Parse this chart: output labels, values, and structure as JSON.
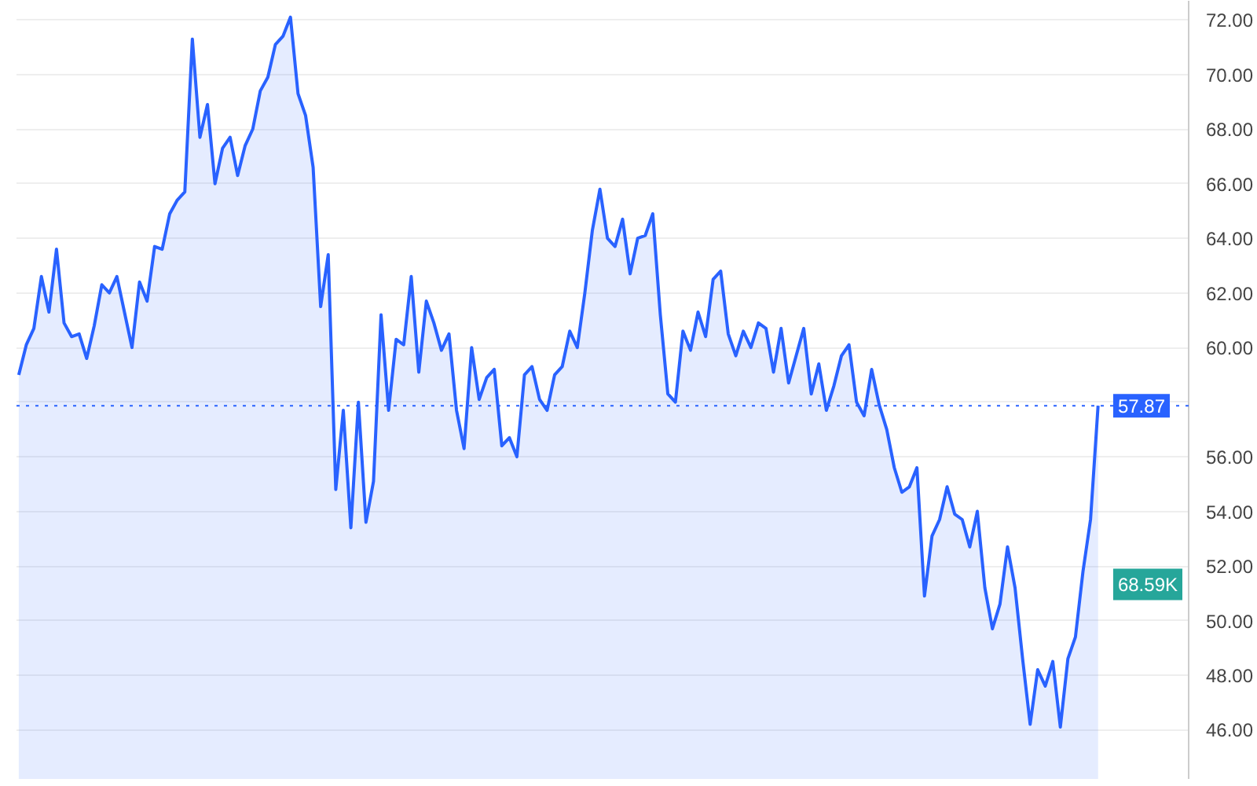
{
  "chart_data": {
    "type": "area",
    "categories": [
      null,
      null,
      null,
      null,
      null,
      null,
      null,
      null,
      null,
      null,
      null,
      null,
      null,
      null,
      null,
      null,
      null,
      null,
      null,
      null,
      null,
      null,
      null,
      null,
      null,
      null,
      null,
      null,
      null,
      null,
      null,
      null,
      null,
      null,
      null,
      null,
      null,
      null,
      null,
      null,
      null,
      null,
      null,
      null,
      null,
      null,
      null,
      null,
      null,
      null,
      null,
      null,
      null,
      null,
      null,
      null,
      null,
      null,
      null,
      null,
      null,
      null,
      null,
      null,
      null,
      null,
      null,
      null,
      null,
      null,
      null,
      null,
      null,
      null,
      null,
      null,
      null,
      null,
      null,
      null,
      null,
      null,
      null,
      null,
      null,
      null,
      null,
      null,
      null,
      null,
      null,
      null,
      null,
      null,
      null,
      null,
      null,
      null,
      null,
      null,
      null,
      null,
      null,
      null,
      null,
      null,
      null,
      null,
      null,
      null,
      null,
      null,
      null,
      null,
      null,
      null,
      null,
      null,
      null,
      null,
      null,
      null,
      null,
      null,
      null,
      null,
      null,
      null,
      null,
      null,
      null,
      null,
      null,
      null,
      null,
      null,
      null,
      null,
      null,
      null,
      null,
      null,
      null,
      null
    ],
    "series": [
      {
        "color": "#2962ff",
        "values": [
          59.0,
          60.1,
          60.7,
          62.6,
          61.3,
          63.6,
          60.9,
          60.4,
          60.5,
          59.6,
          60.8,
          62.3,
          62.0,
          62.6,
          61.3,
          60.0,
          62.4,
          61.7,
          63.7,
          63.6,
          64.9,
          65.4,
          65.7,
          71.3,
          67.7,
          68.9,
          66.0,
          67.3,
          67.7,
          66.3,
          67.4,
          68.0,
          69.4,
          69.9,
          71.1,
          71.4,
          72.1,
          69.3,
          68.5,
          66.6,
          61.5,
          63.4,
          54.8,
          57.7,
          53.4,
          58.0,
          53.6,
          55.1,
          61.2,
          57.7,
          60.3,
          60.1,
          62.6,
          59.1,
          61.7,
          60.9,
          59.9,
          60.5,
          57.7,
          56.3,
          60.0,
          58.1,
          58.9,
          59.2,
          56.4,
          56.7,
          56.0,
          59.0,
          59.3,
          58.1,
          57.7,
          59.0,
          59.3,
          60.6,
          60.0,
          62.0,
          64.3,
          65.8,
          64.0,
          63.7,
          64.7,
          62.7,
          64.0,
          64.1,
          64.9,
          61.2,
          58.3,
          58.0,
          60.6,
          59.9,
          61.3,
          60.4,
          62.5,
          62.8,
          60.5,
          59.7,
          60.6,
          60.0,
          60.9,
          60.7,
          59.1,
          60.7,
          58.7,
          59.7,
          60.7,
          58.3,
          59.4,
          57.7,
          58.6,
          59.7,
          60.1,
          58.0,
          57.5,
          59.2,
          57.9,
          57.0,
          55.6,
          54.7,
          54.9,
          55.6,
          50.9,
          53.1,
          53.7,
          54.9,
          53.9,
          53.7,
          52.7,
          54.0,
          51.2,
          49.7,
          50.6,
          52.7,
          51.2,
          48.6,
          46.2,
          48.2,
          47.6,
          48.5,
          46.1,
          48.6,
          49.4,
          51.8,
          53.7,
          57.87
        ]
      }
    ],
    "ylim": [
      44.2,
      72.7
    ],
    "yticks": [
      {
        "value": 46,
        "label": "46.00"
      },
      {
        "value": 48,
        "label": "48.00"
      },
      {
        "value": 50,
        "label": "50.00"
      },
      {
        "value": 52,
        "label": "52.00"
      },
      {
        "value": 54,
        "label": "54.00"
      },
      {
        "value": 56,
        "label": "56.00"
      },
      {
        "value": 58,
        "label": null
      },
      {
        "value": 60,
        "label": "60.00"
      },
      {
        "value": 62,
        "label": "62.00"
      },
      {
        "value": 64,
        "label": "64.00"
      },
      {
        "value": 66,
        "label": "66.00"
      },
      {
        "value": 68,
        "label": "68.00"
      },
      {
        "value": 70,
        "label": "70.00"
      },
      {
        "value": 72,
        "label": "72.00"
      }
    ],
    "grid": "y",
    "tick_labels": "y",
    "ref_lines": [
      {
        "axis": "y",
        "value": 57.87,
        "label": "57.87",
        "color": "#2962ff",
        "line_style": "dotted"
      }
    ],
    "annotations": [
      "68.59K"
    ]
  }
}
